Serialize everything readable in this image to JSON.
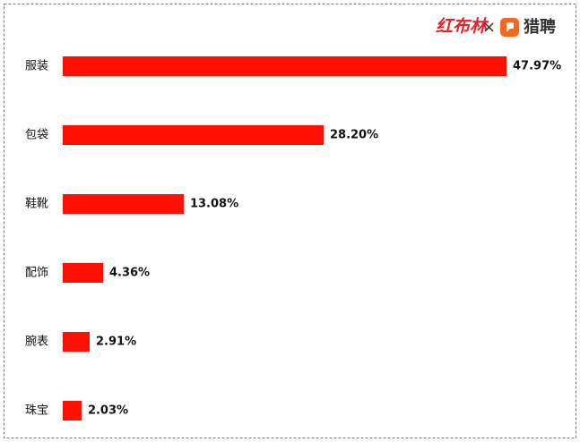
{
  "chart_data": {
    "type": "bar",
    "orientation": "horizontal",
    "brand": [
      "红布林",
      "×",
      "猎聘"
    ],
    "categories": [
      "服装",
      "包袋",
      "鞋靴",
      "配饰",
      "腕表",
      "珠宝"
    ],
    "values": [
      47.97,
      28.2,
      13.08,
      4.36,
      2.91,
      2.03
    ],
    "value_labels": [
      "47.97%",
      "28.20%",
      "13.08%",
      "4.36%",
      "2.91%",
      "2.03%"
    ],
    "color": "#ff1000"
  }
}
